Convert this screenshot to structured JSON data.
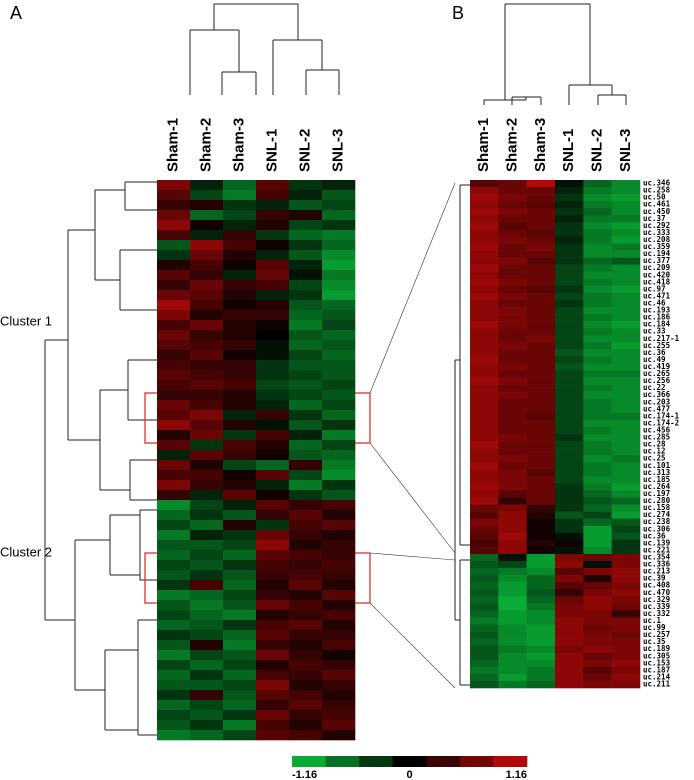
{
  "chart_data": [
    {
      "type": "heatmap",
      "panel": "A",
      "columns": [
        "Sham-1",
        "Sham-2",
        "Sham-3",
        "SNL-1",
        "SNL-2",
        "SNL-3"
      ],
      "clusters": [
        "Cluster 1",
        "Cluster 2"
      ],
      "values": [
        [
          0.7,
          -0.2,
          -0.6,
          0.5,
          -0.3,
          -0.2
        ],
        [
          0.5,
          -0.4,
          -0.7,
          0.4,
          -0.2,
          -0.5
        ],
        [
          0.3,
          0.2,
          -0.3,
          -0.2,
          -0.5,
          -0.4
        ],
        [
          0.6,
          -0.6,
          -0.4,
          0.3,
          0.2,
          -0.6
        ],
        [
          0.8,
          0.1,
          -0.2,
          0.2,
          -0.4,
          -0.3
        ],
        [
          0.4,
          -0.2,
          0.3,
          -0.3,
          -0.6,
          -0.7
        ],
        [
          -0.5,
          0.8,
          0.4,
          0.1,
          -0.3,
          -0.6
        ],
        [
          -0.3,
          0.6,
          0.2,
          -0.2,
          -0.5,
          -0.8
        ],
        [
          0.2,
          0.4,
          0.1,
          0.5,
          -0.2,
          -0.9
        ],
        [
          0.5,
          0.3,
          -0.2,
          0.6,
          -0.1,
          -0.7
        ],
        [
          0.3,
          0.6,
          0.3,
          0.4,
          -0.4,
          -0.8
        ],
        [
          0.6,
          0.5,
          0.2,
          -0.2,
          -0.3,
          -0.9
        ],
        [
          0.9,
          0.4,
          0.1,
          0.2,
          -0.5,
          -0.6
        ],
        [
          0.7,
          0.2,
          0.3,
          0.3,
          -0.6,
          -0.5
        ],
        [
          0.4,
          0.6,
          0.2,
          0.1,
          -0.7,
          -0.4
        ],
        [
          0.6,
          0.3,
          0.2,
          0.0,
          -0.5,
          -0.6
        ],
        [
          0.5,
          0.4,
          0.3,
          -0.1,
          -0.6,
          -0.5
        ],
        [
          0.3,
          0.5,
          0.1,
          -0.1,
          -0.4,
          -0.6
        ],
        [
          0.4,
          0.3,
          0.3,
          -0.3,
          -0.5,
          -0.5
        ],
        [
          0.5,
          0.4,
          0.3,
          -0.3,
          -0.4,
          -0.5
        ],
        [
          0.4,
          0.5,
          0.4,
          -0.4,
          -0.5,
          -0.4
        ],
        [
          0.3,
          0.3,
          0.2,
          -0.3,
          -0.4,
          -0.5
        ],
        [
          0.6,
          0.4,
          0.2,
          -0.2,
          -0.6,
          -0.4
        ],
        [
          0.5,
          0.7,
          -0.2,
          0.3,
          -0.3,
          -0.6
        ],
        [
          0.8,
          0.5,
          0.2,
          -0.1,
          -0.5,
          -0.3
        ],
        [
          0.2,
          0.6,
          -0.3,
          0.4,
          -0.2,
          -0.7
        ],
        [
          0.5,
          -0.3,
          0.4,
          0.2,
          -0.6,
          -0.4
        ],
        [
          -0.2,
          0.5,
          0.3,
          0.1,
          -0.5,
          -0.6
        ],
        [
          0.6,
          0.2,
          -0.4,
          -0.6,
          0.3,
          -0.7
        ],
        [
          0.4,
          0.4,
          0.1,
          0.5,
          -0.4,
          -0.8
        ],
        [
          0.7,
          0.3,
          0.2,
          -0.2,
          -0.7,
          -0.3
        ],
        [
          0.3,
          -0.2,
          0.5,
          0.1,
          -0.3,
          -0.5
        ],
        [
          -0.8,
          -0.4,
          -0.2,
          0.5,
          0.3,
          0.4
        ],
        [
          -0.6,
          -0.3,
          -0.5,
          0.3,
          0.5,
          0.2
        ],
        [
          -0.4,
          -0.6,
          0.2,
          -0.3,
          0.4,
          0.5
        ],
        [
          -0.7,
          -0.2,
          -0.3,
          0.6,
          0.3,
          0.2
        ],
        [
          -0.5,
          -0.5,
          -0.4,
          0.8,
          0.2,
          0.3
        ],
        [
          -0.6,
          -0.4,
          -0.6,
          0.5,
          0.4,
          0.3
        ],
        [
          -0.4,
          -0.5,
          -0.3,
          0.4,
          0.3,
          0.4
        ],
        [
          -0.5,
          -0.3,
          -0.5,
          0.3,
          0.4,
          0.3
        ],
        [
          -0.3,
          0.4,
          -0.6,
          0.2,
          0.5,
          0.2
        ],
        [
          -0.7,
          -0.6,
          -0.4,
          0.3,
          0.2,
          0.5
        ],
        [
          -0.5,
          -0.7,
          -0.5,
          0.6,
          0.4,
          0.2
        ],
        [
          -0.4,
          -0.6,
          -0.7,
          0.2,
          0.3,
          0.4
        ],
        [
          -0.6,
          -0.5,
          -0.3,
          0.4,
          0.5,
          0.2
        ],
        [
          -0.3,
          -0.4,
          -0.6,
          0.5,
          0.3,
          0.3
        ],
        [
          -0.5,
          0.2,
          -0.7,
          0.3,
          0.2,
          0.4
        ],
        [
          -0.7,
          -0.4,
          -0.5,
          0.6,
          0.3,
          0.1
        ],
        [
          -0.4,
          -0.6,
          -0.4,
          0.2,
          0.4,
          0.3
        ],
        [
          -0.6,
          -0.3,
          -0.6,
          0.4,
          0.3,
          0.5
        ],
        [
          -0.5,
          -0.5,
          -0.4,
          0.7,
          0.2,
          0.3
        ],
        [
          -0.3,
          0.3,
          -0.5,
          0.5,
          0.4,
          0.2
        ],
        [
          -0.6,
          -0.4,
          -0.6,
          0.3,
          0.5,
          0.3
        ],
        [
          -0.4,
          -0.5,
          -0.3,
          0.6,
          0.3,
          0.4
        ],
        [
          -0.5,
          -0.3,
          -0.7,
          0.4,
          0.2,
          0.5
        ],
        [
          -0.7,
          -0.6,
          -0.4,
          0.5,
          0.4,
          0.2
        ]
      ]
    },
    {
      "type": "heatmap",
      "panel": "B",
      "columns": [
        "Sham-1",
        "Sham-2",
        "Sham-3",
        "SNL-1",
        "SNL-2",
        "SNL-3"
      ],
      "rows": [
        "uc.346",
        "uc.258",
        "uc.50",
        "uc.461",
        "uc.450",
        "uc.37",
        "uc.292",
        "uc.333",
        "uc.208",
        "uc.359",
        "uc.194",
        "uc.377",
        "uc.209",
        "uc.420",
        "uc.418",
        "uc.97",
        "uc.471",
        "uc.46",
        "uc.193",
        "uc.186",
        "uc.184",
        "uc.33",
        "uc.217-1",
        "uc.255",
        "uc.36",
        "uc.49",
        "uc.419",
        "uc.265",
        "uc.256",
        "uc.22",
        "uc.366",
        "uc.203",
        "uc.477",
        "uc.174-1",
        "uc.174-2",
        "uc.456",
        "uc.285",
        "uc.28",
        "uc.12",
        "uc.25",
        "uc.101",
        "uc.313",
        "uc.185",
        "uc.264",
        "uc.197",
        "uc.280",
        "uc.158",
        "uc.274",
        "uc.238",
        "uc.306",
        "uc.36",
        "uc.139",
        "uc.221",
        "uc.354",
        "uc.336",
        "uc.213",
        "uc.39",
        "uc.408",
        "uc.470",
        "uc.329",
        "uc.339",
        "uc.332",
        "uc.1",
        "uc.99",
        "uc.257",
        "uc.35",
        "uc.189",
        "uc.305",
        "uc.153",
        "uc.187",
        "uc.214",
        "uc.211"
      ],
      "values": [
        [
          0.5,
          0.6,
          1.0,
          -0.1,
          -0.6,
          -0.8
        ],
        [
          0.8,
          0.6,
          0.6,
          -0.2,
          -0.7,
          -0.8
        ],
        [
          0.9,
          0.7,
          0.6,
          -0.3,
          -0.8,
          -0.9
        ],
        [
          0.8,
          0.6,
          0.5,
          -0.2,
          -0.7,
          -0.8
        ],
        [
          0.9,
          0.7,
          0.6,
          -0.3,
          -0.6,
          -0.8
        ],
        [
          0.8,
          0.6,
          0.6,
          -0.2,
          -0.7,
          -0.7
        ],
        [
          0.9,
          0.5,
          0.6,
          -0.3,
          -0.8,
          -0.9
        ],
        [
          0.8,
          0.6,
          0.5,
          -0.3,
          -0.7,
          -0.8
        ],
        [
          0.8,
          0.7,
          0.6,
          -0.2,
          -0.7,
          -0.9
        ],
        [
          0.9,
          0.6,
          0.7,
          -0.3,
          -0.8,
          -0.7
        ],
        [
          0.8,
          0.6,
          0.6,
          -0.3,
          -0.8,
          -0.8
        ],
        [
          0.8,
          0.7,
          0.5,
          -0.3,
          -0.6,
          -0.5
        ],
        [
          0.9,
          0.6,
          0.6,
          -0.4,
          -0.7,
          -0.8
        ],
        [
          0.8,
          0.6,
          0.6,
          -0.4,
          -0.8,
          -0.8
        ],
        [
          0.9,
          0.7,
          0.6,
          -0.4,
          -0.7,
          -0.8
        ],
        [
          0.8,
          0.6,
          0.5,
          -0.3,
          -0.8,
          -0.9
        ],
        [
          0.9,
          0.7,
          0.6,
          -0.4,
          -0.7,
          -0.8
        ],
        [
          0.8,
          0.6,
          0.6,
          -0.3,
          -0.7,
          -0.8
        ],
        [
          0.8,
          0.7,
          0.6,
          -0.4,
          -0.8,
          -0.8
        ],
        [
          0.8,
          0.7,
          0.6,
          -0.4,
          -0.7,
          -0.8
        ],
        [
          0.9,
          0.7,
          0.6,
          -0.4,
          -0.8,
          -0.9
        ],
        [
          0.8,
          0.6,
          0.6,
          -0.4,
          -0.7,
          -0.8
        ],
        [
          0.8,
          0.6,
          0.7,
          -0.4,
          -0.8,
          -0.8
        ],
        [
          0.8,
          0.7,
          0.6,
          -0.4,
          -0.7,
          -0.9
        ],
        [
          0.8,
          0.6,
          0.6,
          -0.5,
          -0.8,
          -0.8
        ],
        [
          0.9,
          0.6,
          0.6,
          -0.4,
          -0.7,
          -0.8
        ],
        [
          0.8,
          0.7,
          0.6,
          -0.5,
          -0.8,
          -0.8
        ],
        [
          0.8,
          0.6,
          0.6,
          -0.4,
          -0.7,
          -0.7
        ],
        [
          0.9,
          0.7,
          0.6,
          -0.4,
          -0.8,
          -0.8
        ],
        [
          0.8,
          0.6,
          0.6,
          -0.4,
          -0.7,
          -0.8
        ],
        [
          0.8,
          0.7,
          0.6,
          -0.4,
          -0.8,
          -0.8
        ],
        [
          0.8,
          0.6,
          0.6,
          -0.4,
          -0.7,
          -0.8
        ],
        [
          0.8,
          0.6,
          0.6,
          -0.4,
          -0.7,
          -0.8
        ],
        [
          0.8,
          0.6,
          0.5,
          -0.4,
          -0.7,
          -0.7
        ],
        [
          0.8,
          0.6,
          0.6,
          -0.4,
          -0.8,
          -0.8
        ],
        [
          0.8,
          0.6,
          0.6,
          -0.4,
          -0.7,
          -0.8
        ],
        [
          0.8,
          0.7,
          0.6,
          -0.3,
          -0.8,
          -0.8
        ],
        [
          0.9,
          0.6,
          0.6,
          -0.4,
          -0.7,
          -0.8
        ],
        [
          0.8,
          0.6,
          0.6,
          -0.4,
          -0.7,
          -0.8
        ],
        [
          0.8,
          0.7,
          0.6,
          -0.4,
          -0.8,
          -0.7
        ],
        [
          0.9,
          0.6,
          0.6,
          -0.4,
          -0.7,
          -0.8
        ],
        [
          0.8,
          0.7,
          0.5,
          -0.4,
          -0.7,
          -0.8
        ],
        [
          0.8,
          0.7,
          0.6,
          -0.4,
          -0.8,
          -0.8
        ],
        [
          0.9,
          0.7,
          0.6,
          -0.3,
          -0.7,
          -0.9
        ],
        [
          0.8,
          0.5,
          0.6,
          -0.3,
          -0.6,
          -0.8
        ],
        [
          0.9,
          0.3,
          0.6,
          -0.3,
          -0.5,
          -0.6
        ],
        [
          0.6,
          0.7,
          0.3,
          -0.3,
          -0.6,
          -0.8
        ],
        [
          0.5,
          0.8,
          0.2,
          -0.5,
          -0.4,
          -0.9
        ],
        [
          0.7,
          0.8,
          0.1,
          -0.3,
          -0.6,
          -0.5
        ],
        [
          0.6,
          0.8,
          0.1,
          -0.3,
          -0.9,
          -0.4
        ],
        [
          0.5,
          0.9,
          0.1,
          -0.1,
          -0.9,
          -0.5
        ],
        [
          0.4,
          0.8,
          0.2,
          0.1,
          -0.9,
          -0.3
        ],
        [
          0.5,
          0.8,
          0.1,
          -0.1,
          -0.8,
          -0.3
        ],
        [
          -0.6,
          -0.1,
          -0.9,
          0.7,
          0.6,
          0.7
        ],
        [
          -0.5,
          -0.4,
          -0.9,
          0.8,
          -0.1,
          0.7
        ],
        [
          -0.6,
          -0.7,
          -0.8,
          0.5,
          0.7,
          0.8
        ],
        [
          -0.5,
          -0.8,
          -0.6,
          0.7,
          0.2,
          0.8
        ],
        [
          -0.6,
          -0.9,
          -0.6,
          0.5,
          0.6,
          0.7
        ],
        [
          -0.5,
          -0.9,
          -0.5,
          0.3,
          0.7,
          0.8
        ],
        [
          -0.6,
          -1.0,
          -0.6,
          0.6,
          0.8,
          0.7
        ],
        [
          -0.5,
          -1.0,
          -0.7,
          0.7,
          0.8,
          0.6
        ],
        [
          -0.6,
          -0.9,
          -0.8,
          0.7,
          0.7,
          0.3
        ],
        [
          -0.7,
          -0.9,
          -0.8,
          0.8,
          0.7,
          0.7
        ],
        [
          -0.6,
          -0.8,
          -0.9,
          0.8,
          0.6,
          0.7
        ],
        [
          -0.5,
          -0.8,
          -0.9,
          0.8,
          0.7,
          0.6
        ],
        [
          -0.6,
          -0.8,
          -0.9,
          0.8,
          0.7,
          0.7
        ],
        [
          -0.5,
          -0.7,
          -0.8,
          0.7,
          0.8,
          0.7
        ],
        [
          -0.5,
          -0.8,
          -0.9,
          0.8,
          0.6,
          0.7
        ],
        [
          -0.6,
          -0.8,
          -0.8,
          0.8,
          0.7,
          0.8
        ],
        [
          -0.7,
          -0.8,
          -0.7,
          0.8,
          0.5,
          0.7
        ],
        [
          -0.6,
          -0.9,
          -0.7,
          0.8,
          0.6,
          0.8
        ],
        [
          -0.5,
          -0.7,
          -0.6,
          0.8,
          0.7,
          0.7
        ]
      ]
    }
  ],
  "panel_labels": [
    "A",
    "B"
  ],
  "colorbar": {
    "min": -1.16,
    "mid": 0,
    "max": 1.16
  }
}
